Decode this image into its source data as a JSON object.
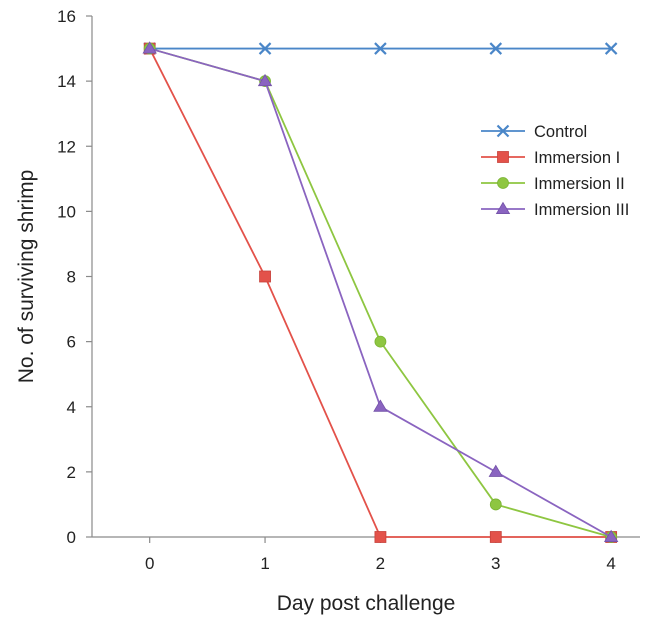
{
  "chart_data": {
    "type": "line",
    "title": "",
    "xlabel": "Day post challenge",
    "ylabel": "No. of surviving shrimp",
    "x": [
      0,
      1,
      2,
      3,
      4
    ],
    "xlim": [
      -0.5,
      4.25
    ],
    "ylim": [
      0,
      16
    ],
    "xticks": [
      0,
      1,
      2,
      3,
      4
    ],
    "yticks": [
      0,
      2,
      4,
      6,
      8,
      10,
      12,
      14,
      16
    ],
    "grid": false,
    "legend_position": "right",
    "series": [
      {
        "name": "Control",
        "values": [
          15,
          15,
          15,
          15,
          15
        ],
        "color": "#4a86c8",
        "marker": "x"
      },
      {
        "name": "Immersion I",
        "values": [
          15,
          8,
          0,
          0,
          0
        ],
        "color": "#e3524a",
        "marker": "square"
      },
      {
        "name": "Immersion II",
        "values": [
          15,
          14,
          6,
          1,
          0
        ],
        "color": "#8ec641",
        "marker": "circle"
      },
      {
        "name": "Immersion III",
        "values": [
          15,
          14,
          4,
          2,
          0
        ],
        "color": "#8a64c0",
        "marker": "triangle"
      }
    ]
  }
}
